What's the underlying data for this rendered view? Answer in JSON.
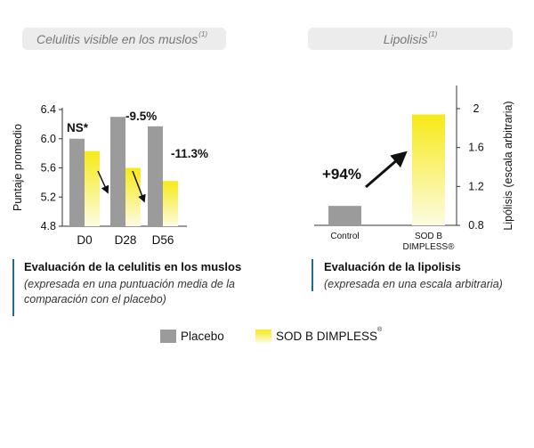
{
  "panel_left": {
    "title": "Celulitis visible en los muslos",
    "title_ref": "(1)",
    "caption_title": "Evaluación de la celulitis en los muslos",
    "caption_sub_1": "(expresada en una puntuación media de la",
    "caption_sub_2": "comparación con el placebo)"
  },
  "panel_right": {
    "title": "Lipolisis",
    "title_ref": "(1)",
    "caption_title": "Evaluación de la lipolisis",
    "caption_sub": "(expresada en una escala arbitraria)"
  },
  "legend": {
    "placebo": "Placebo",
    "product": "SOD B DIMPLESS",
    "product_mark": "®"
  },
  "colors": {
    "placebo": "#9b9b9b",
    "product_top": "#f7ea16",
    "product_bottom": "#fdfbe3",
    "accent": "#1e6f8e"
  },
  "chart_data": [
    {
      "type": "bar",
      "title": "Celulitis visible en los muslos",
      "ylabel": "Puntaje promedio",
      "xlabel": "",
      "ylim": [
        4.8,
        6.4
      ],
      "yticks": [
        "6.4",
        "6.0",
        "5.6",
        "5.2",
        "4.8"
      ],
      "categories": [
        "D0",
        "D28",
        "D56"
      ],
      "series": [
        {
          "name": "Placebo",
          "values": [
            6.0,
            6.3,
            6.17
          ]
        },
        {
          "name": "SOD B DIMPLESS",
          "values": [
            5.83,
            5.6,
            5.42
          ]
        }
      ],
      "annotations": [
        "NS*",
        "-9.5%",
        "-11.3%"
      ]
    },
    {
      "type": "bar",
      "title": "Lipolisis",
      "ylabel": "Lipólisis (escala arbitraria)",
      "ylim": [
        0.8,
        2.0
      ],
      "yticks": [
        "2",
        "1.6",
        "1.2",
        "0.8"
      ],
      "categories": [
        "Control",
        "SOD B DIMPLESS®"
      ],
      "category_lines": [
        [
          "Control"
        ],
        [
          "SOD B",
          "DIMPLESS®"
        ]
      ],
      "values": [
        1.0,
        1.94
      ],
      "annotation": "+94%"
    }
  ]
}
